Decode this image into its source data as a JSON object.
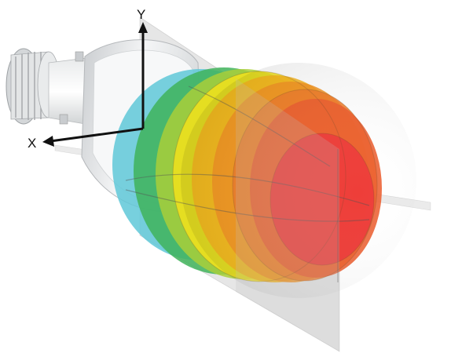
{
  "axes": {
    "x_label": "X",
    "y_label": "Y"
  },
  "colors": {
    "background": "#ffffff",
    "plane": "#a8a8a8",
    "axis": "#111111",
    "device_body": "#eef0f1",
    "device_edge": "#c4c7c9",
    "lobe_gradient": [
      "#5fc8d8",
      "#3fb35a",
      "#f2e21c",
      "#f7a51e",
      "#ef7d2b",
      "#ee3b3b"
    ]
  },
  "icons": {
    "antenna_device": "parabolic-antenna-icon"
  }
}
